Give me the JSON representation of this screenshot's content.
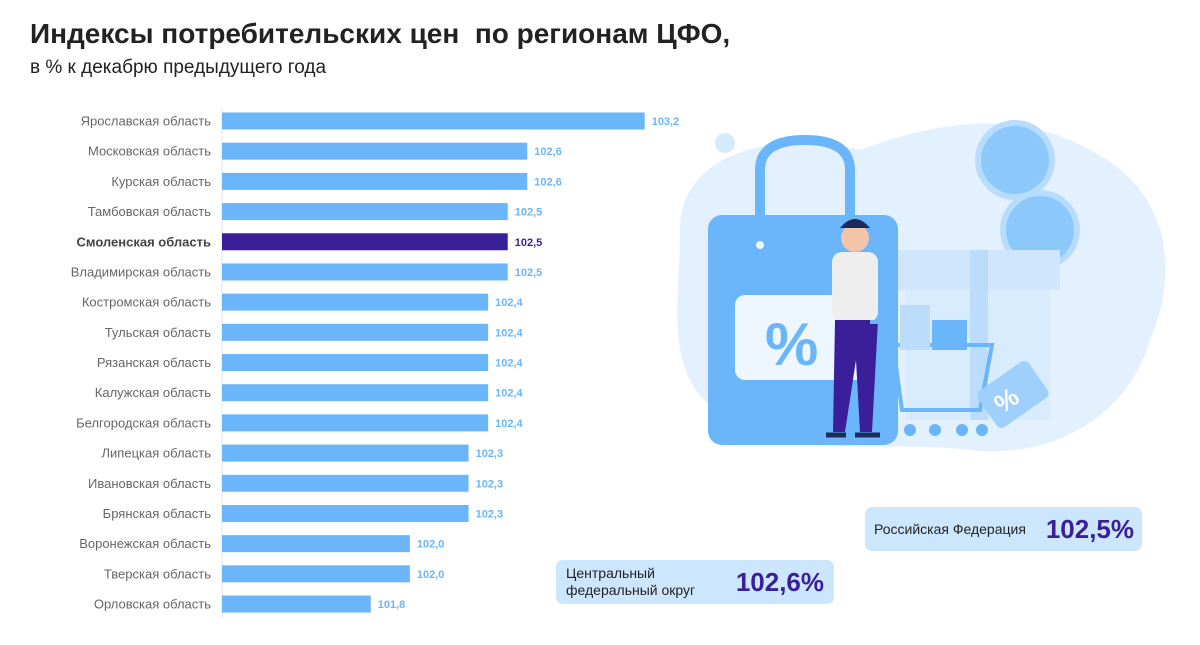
{
  "header": {
    "title": "Индексы потребительских цен  по регионам ЦФО,",
    "subtitle": "в % к декабрю предыдущего года"
  },
  "chart_data": {
    "type": "bar",
    "orientation": "horizontal",
    "title": "Индексы потребительских цен  по регионам ЦФО,",
    "subtitle": "в % к декабрю предыдущего года",
    "xlabel": "",
    "ylabel": "",
    "categories": [
      "Ярославская область",
      "Московская область",
      "Курская область",
      "Тамбовская область",
      "Смоленская область",
      "Владимирская область",
      "Костромская область",
      "Тульская область",
      "Рязанская область",
      "Калужская область",
      "Белгородская область",
      "Липецкая область",
      "Ивановская область",
      "Брянская область",
      "Воронежская область",
      "Тверская область",
      "Орловская область"
    ],
    "values": [
      103.2,
      102.6,
      102.6,
      102.5,
      102.5,
      102.5,
      102.4,
      102.4,
      102.4,
      102.4,
      102.4,
      102.3,
      102.3,
      102.3,
      102.0,
      102.0,
      101.8
    ],
    "value_labels": [
      "103,2",
      "102,6",
      "102,6",
      "102,5",
      "102,5",
      "102,5",
      "102,4",
      "102,4",
      "102,4",
      "102,4",
      "102,4",
      "102,3",
      "102,3",
      "102,3",
      "102,0",
      "102,0",
      "101,8"
    ],
    "highlight": "Смоленская область",
    "colors": {
      "bar": "#6bb6fb",
      "highlight": "#3b1f9a",
      "label": "#6bb6fb"
    }
  },
  "summary": {
    "cfo_label_line1": "Центральный",
    "cfo_label_line2": "федеральный округ",
    "cfo_value": "102,6%",
    "rf_label": "Российская Федерация",
    "rf_value": "102,5%"
  }
}
